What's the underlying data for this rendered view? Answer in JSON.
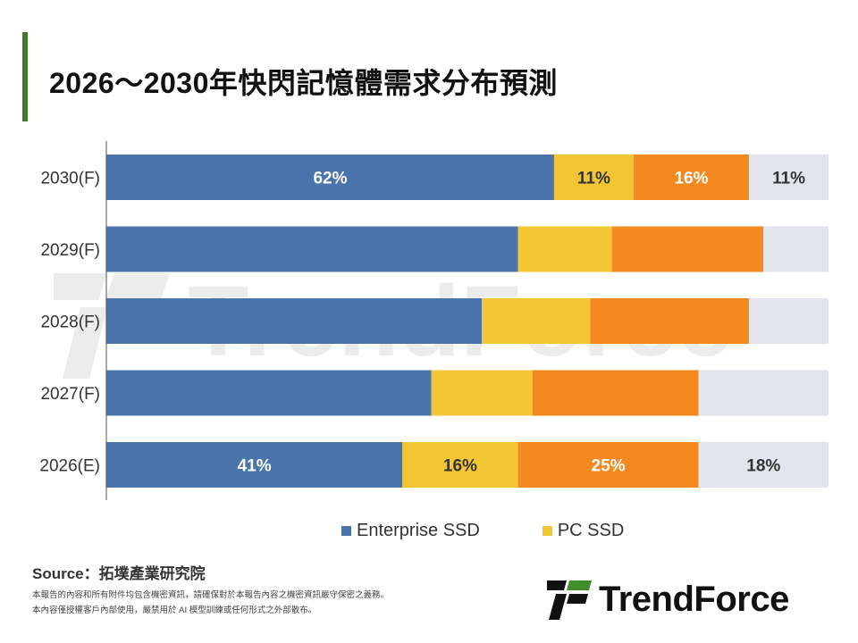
{
  "title": "2026～2030年快閃記憶體需求分布預測",
  "chart_data": {
    "type": "bar",
    "orientation": "horizontal",
    "stacked": true,
    "normalized": true,
    "categories": [
      "2030(F)",
      "2029(F)",
      "2028(F)",
      "2027(F)",
      "2026(E)"
    ],
    "series": [
      {
        "name": "Enterprise SSD",
        "color": "#4a74ab",
        "values": [
          62,
          57,
          52,
          45,
          41
        ]
      },
      {
        "name": "PC SSD",
        "color": "#f2c532",
        "values": [
          11,
          13,
          15,
          14,
          16
        ]
      },
      {
        "name": "",
        "color": "#f48a1f",
        "values": [
          16,
          21,
          22,
          23,
          25
        ]
      },
      {
        "name": "",
        "color": "#e2e5ed",
        "values": [
          11,
          9,
          11,
          18,
          18
        ]
      }
    ],
    "data_labels": {
      "2030(F)": [
        "62%",
        "11%",
        "16%",
        "11%"
      ],
      "2026(E)": [
        "41%",
        "16%",
        "25%",
        "18%"
      ]
    },
    "label_colors": [
      "#ffffff",
      "#333333",
      "#ffffff",
      "#333333"
    ],
    "xlim": [
      0,
      100
    ],
    "grid": false,
    "legend": "bottom"
  },
  "source": "Source：拓墣產業研究院",
  "notes": [
    "本報告的內容和所有附件均包含機密資訊，請確保對於本報告內容之機密資訊嚴守保密之義務。",
    "本內容僅授權客戶內部使用，嚴禁用於 AI 模型訓練或任何形式之外部散布。"
  ],
  "watermark": "TrendForce",
  "logo": "TrendForce"
}
